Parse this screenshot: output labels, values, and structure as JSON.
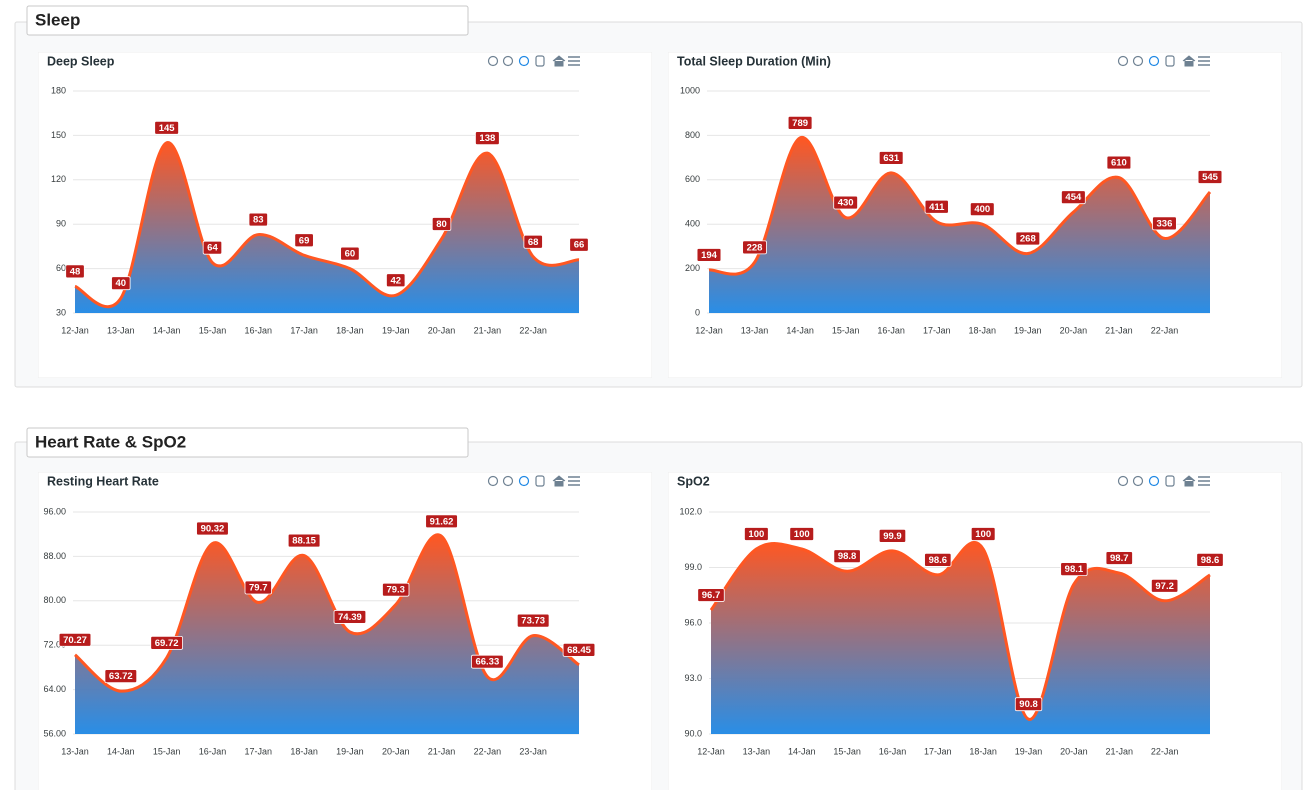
{
  "sections": [
    {
      "title": "Sleep"
    },
    {
      "title": "Heart Rate & SpO2"
    }
  ],
  "chart_data": [
    {
      "type": "area",
      "title": "Deep Sleep",
      "color": "#ff5722",
      "fill_to": "#1e88e5",
      "categories": [
        "12-Jan",
        "13-Jan",
        "14-Jan",
        "15-Jan",
        "16-Jan",
        "17-Jan",
        "18-Jan",
        "19-Jan",
        "20-Jan",
        "21-Jan",
        "22-Jan",
        null
      ],
      "values": [
        48,
        40,
        145,
        64,
        83,
        69,
        60,
        42,
        80,
        138,
        68,
        66
      ],
      "ylim": [
        30,
        180
      ],
      "yticks": [
        30,
        60,
        90,
        120,
        150,
        180
      ],
      "grid": true
    },
    {
      "type": "area",
      "title": "Total Sleep Duration (Min)",
      "color": "#ff5722",
      "fill_to": "#1e88e5",
      "categories": [
        "12-Jan",
        "13-Jan",
        "14-Jan",
        "15-Jan",
        "16-Jan",
        "17-Jan",
        "18-Jan",
        "19-Jan",
        "20-Jan",
        "21-Jan",
        "22-Jan",
        null
      ],
      "values": [
        194,
        228,
        789,
        430,
        631,
        411,
        400,
        268,
        454,
        610,
        336,
        545
      ],
      "ylim": [
        0,
        1000
      ],
      "yticks": [
        0,
        200,
        400,
        600,
        800,
        1000
      ],
      "grid": true
    },
    {
      "type": "area",
      "title": "Resting Heart Rate",
      "color": "#ff5722",
      "fill_to": "#1e88e5",
      "categories": [
        "13-Jan",
        "14-Jan",
        "15-Jan",
        "16-Jan",
        "17-Jan",
        "18-Jan",
        "19-Jan",
        "20-Jan",
        "21-Jan",
        "22-Jan",
        "23-Jan",
        null
      ],
      "values": [
        70.27,
        63.72,
        69.72,
        90.32,
        79.7,
        88.15,
        74.39,
        79.3,
        91.62,
        66.33,
        73.73,
        68.45
      ],
      "ylim": [
        56,
        96
      ],
      "yticks": [
        {
          "value": 56,
          "label": "56.00"
        },
        {
          "value": 64,
          "label": "64.00"
        },
        {
          "value": 72,
          "label": "72.00"
        },
        {
          "value": 80,
          "label": "80.00"
        },
        {
          "value": 88,
          "label": "88.00"
        },
        {
          "value": 96,
          "label": "96.00"
        }
      ],
      "grid": true
    },
    {
      "type": "area",
      "title": "SpO2",
      "color": "#ff5722",
      "fill_to": "#1e88e5",
      "categories": [
        "12-Jan",
        "13-Jan",
        "14-Jan",
        "15-Jan",
        "16-Jan",
        "17-Jan",
        "18-Jan",
        "19-Jan",
        "20-Jan",
        "21-Jan",
        "22-Jan",
        null
      ],
      "values": [
        96.7,
        100,
        100,
        98.8,
        99.9,
        98.6,
        100,
        90.8,
        98.1,
        98.7,
        97.2,
        98.6
      ],
      "ylim": [
        90,
        102
      ],
      "yticks": [
        {
          "value": 90,
          "label": "90.0"
        },
        {
          "value": 93,
          "label": "93.0"
        },
        {
          "value": 96,
          "label": "96.0"
        },
        {
          "value": 99,
          "label": "99.0"
        },
        {
          "value": 102,
          "label": "102.0"
        }
      ],
      "grid": true
    }
  ]
}
